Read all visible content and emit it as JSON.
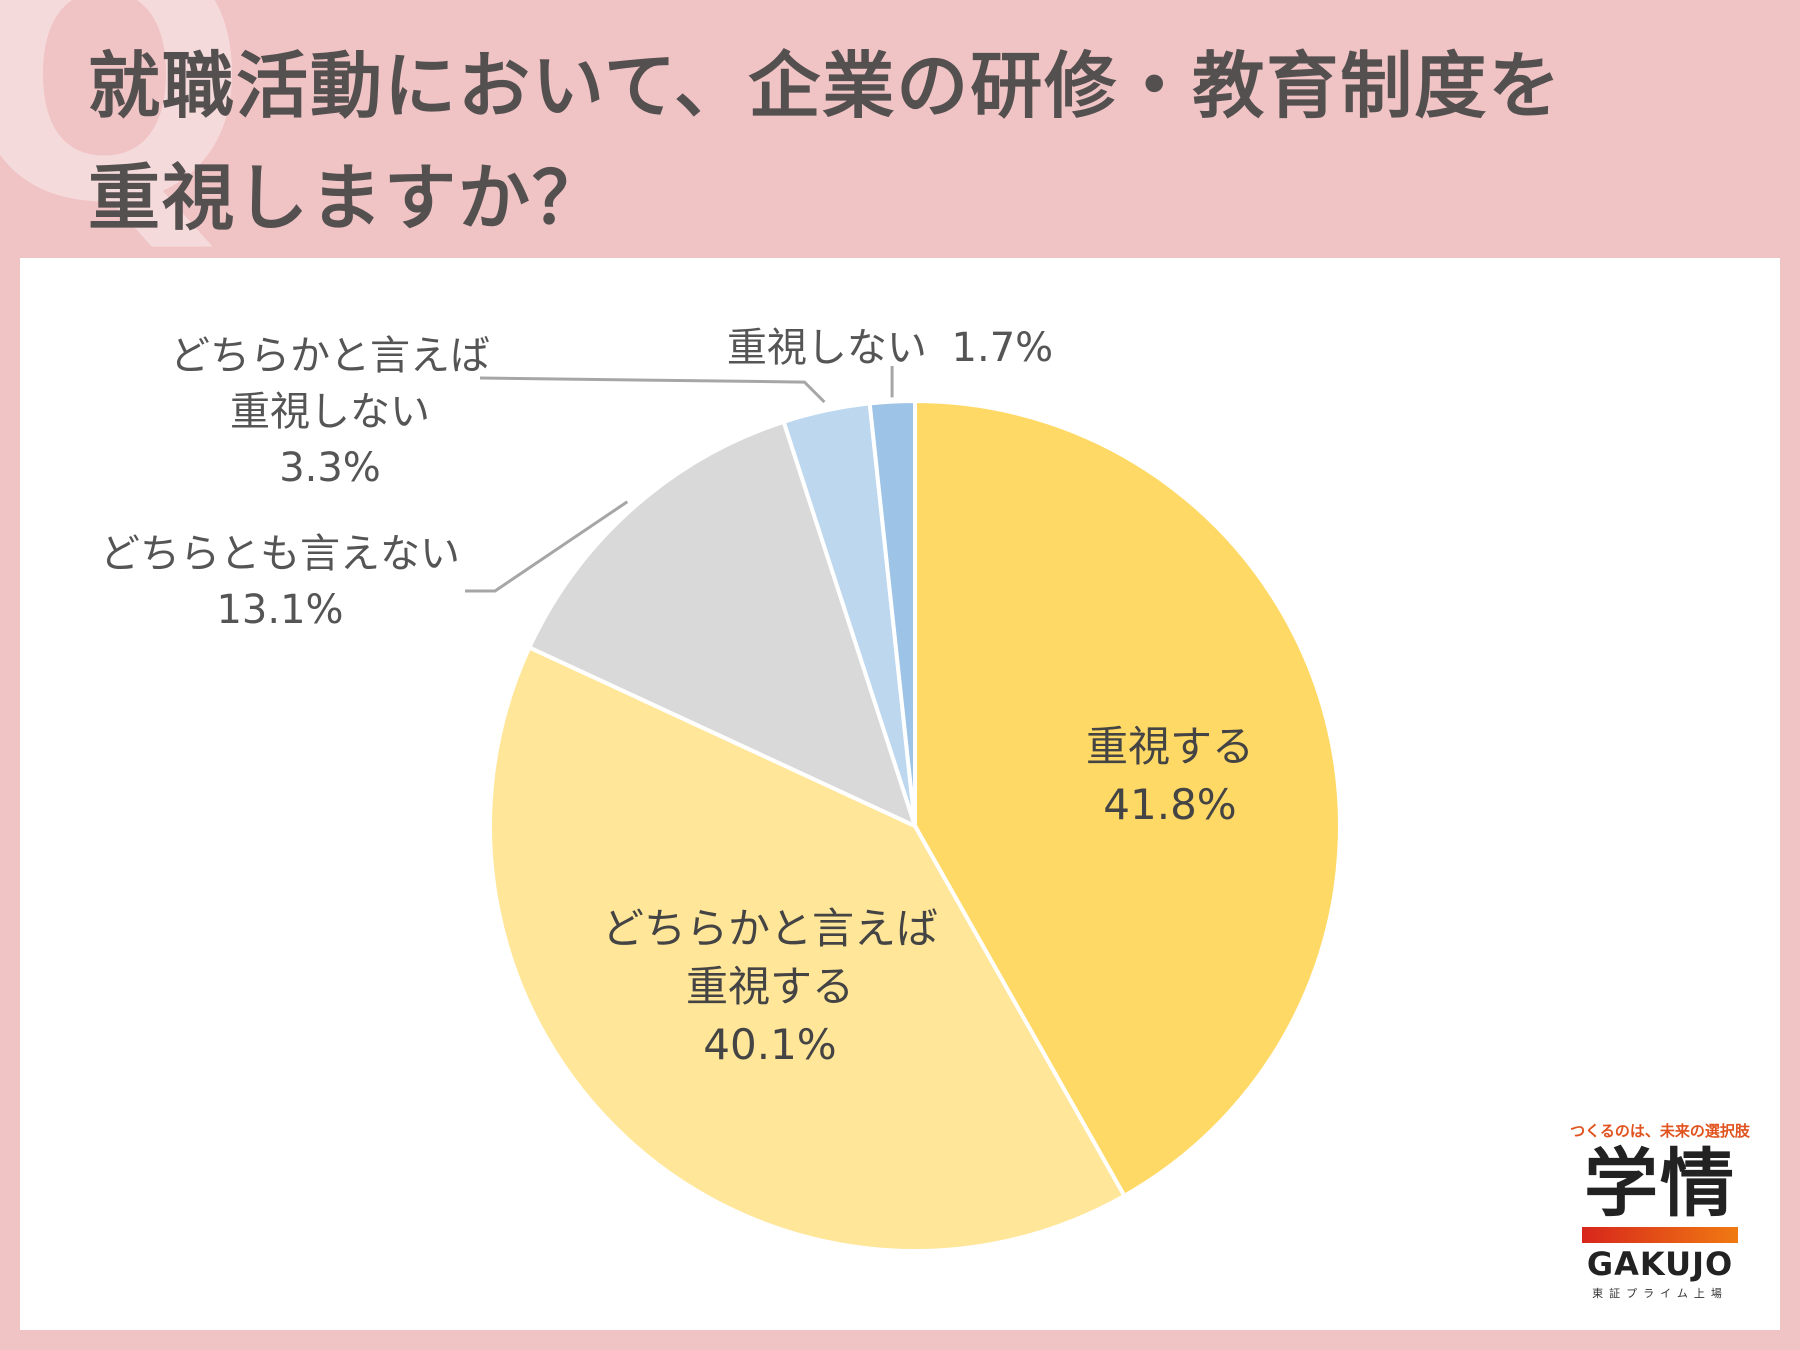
{
  "title_line1": "就職活動において、企業の研修・教育制度を",
  "title_line2": "重視しますか？",
  "colors": {
    "background": "#f0c3c5",
    "panel": "#ffffff",
    "title_text": "#555050"
  },
  "chart_data": {
    "type": "pie",
    "title": "就職活動において、企業の研修・教育制度を重視しますか？",
    "slices": [
      {
        "label_lines": [
          "重視する"
        ],
        "value_text": "41.8%",
        "value": 41.8,
        "color": "#ffd966"
      },
      {
        "label_lines": [
          "どちらかと言えば",
          "重視する"
        ],
        "value_text": "40.1%",
        "value": 40.1,
        "color": "#ffe699"
      },
      {
        "label_lines": [
          "どちらとも言えない"
        ],
        "value_text": "13.1%",
        "value": 13.1,
        "color": "#d9d9d9"
      },
      {
        "label_lines": [
          "どちらかと言えば",
          "重視しない"
        ],
        "value_text": "3.3%",
        "value": 3.3,
        "color": "#bdd7ee"
      },
      {
        "label_lines": [
          "重視しない"
        ],
        "value_text": "1.7%",
        "value": 1.7,
        "color": "#9dc3e6"
      }
    ]
  },
  "logo": {
    "tagline": "つくるのは、未来の選択肢",
    "brand_jp": "学情",
    "brand_en": "GAKUJO",
    "listing": "東証プライム上場",
    "bar_colors": [
      "#d7261c",
      "#f07a12"
    ]
  }
}
